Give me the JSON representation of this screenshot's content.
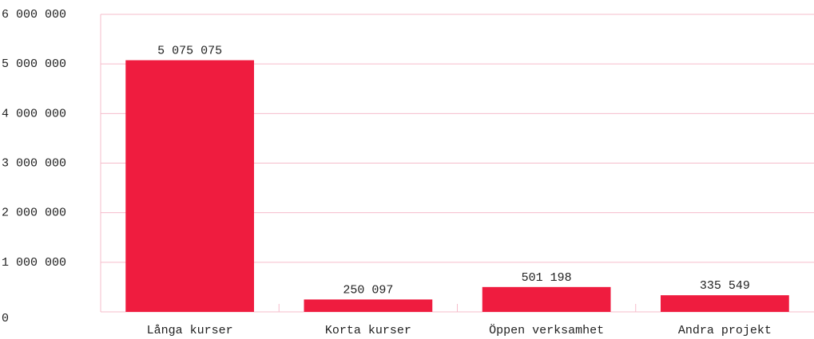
{
  "chart_data": {
    "type": "bar",
    "categories": [
      "Långa kurser",
      "Korta kurser",
      "Öppen verksamhet",
      "Andra projekt"
    ],
    "values": [
      5075075,
      250097,
      501198,
      335549
    ],
    "value_labels": [
      "5 075 075",
      "250 097",
      "501 198",
      "335 549"
    ],
    "color": "#ef1c3f",
    "ylim": [
      0,
      6000000
    ],
    "yticks": [
      0,
      {
        "value": 1000000,
        "label": "1 000 000"
      },
      {
        "value": 2000000,
        "label": "2 000 000"
      },
      {
        "value": 3000000,
        "label": "3 000 000"
      },
      {
        "value": 4000000,
        "label": "4 000 000"
      },
      {
        "value": 5000000,
        "label": "5 000 000"
      },
      {
        "value": 6000000,
        "label": "6 000 000"
      }
    ],
    "grid": true
  }
}
